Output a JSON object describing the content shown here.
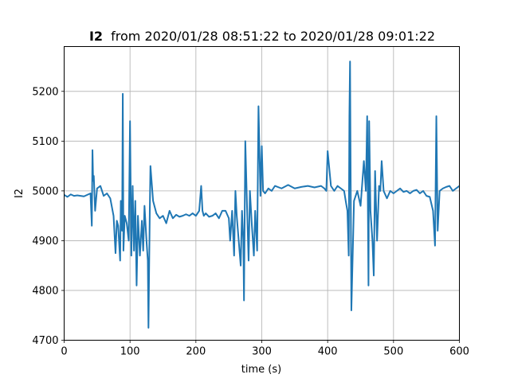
{
  "chart_data": {
    "type": "line",
    "title": {
      "bold": "I2",
      "rest": "from 2020/01/28 08:51:22 to 2020/01/28 09:01:22"
    },
    "xlabel": "time (s)",
    "ylabel": "I2",
    "xlim": [
      0,
      600
    ],
    "ylim": [
      4700,
      5290
    ],
    "x_ticks": [
      0,
      100,
      200,
      300,
      400,
      500,
      600
    ],
    "y_ticks": [
      4700,
      4800,
      4900,
      5000,
      5100,
      5200
    ],
    "grid": true,
    "line_color": "#1f77b4",
    "series": [
      {
        "x": [
          0,
          5,
          10,
          15,
          20,
          25,
          30,
          35,
          40,
          42,
          43,
          44,
          45,
          47,
          50,
          55,
          60,
          65,
          70,
          75,
          78,
          80,
          82,
          85,
          86,
          88,
          89,
          90,
          92,
          95,
          98,
          100,
          102,
          104,
          106,
          108,
          110,
          112,
          115,
          118,
          120,
          122,
          125,
          127,
          128,
          130,
          131,
          135,
          140,
          145,
          150,
          155,
          160,
          165,
          170,
          175,
          180,
          185,
          190,
          195,
          200,
          205,
          208,
          210,
          212,
          215,
          220,
          225,
          230,
          235,
          240,
          245,
          250,
          252,
          255,
          258,
          260,
          262,
          265,
          268,
          270,
          272,
          273,
          275,
          278,
          280,
          282,
          285,
          288,
          290,
          293,
          295,
          298,
          300,
          302,
          305,
          310,
          315,
          320,
          330,
          340,
          350,
          360,
          370,
          380,
          390,
          395,
          398,
          400,
          405,
          410,
          415,
          420,
          425,
          428,
          430,
          432,
          433,
          434,
          436,
          440,
          445,
          450,
          455,
          458,
          460,
          462,
          463,
          465,
          468,
          470,
          472,
          475,
          478,
          480,
          482,
          485,
          490,
          495,
          500,
          505,
          510,
          515,
          520,
          525,
          530,
          535,
          540,
          545,
          550,
          555,
          560,
          563,
          565,
          567,
          570,
          575,
          580,
          585,
          590,
          595,
          600
        ],
        "y": [
          4992,
          4988,
          4993,
          4990,
          4991,
          4990,
          4989,
          4992,
          4995,
          4930,
          5082,
          5020,
          5030,
          4960,
          5005,
          5010,
          4990,
          4995,
          4985,
          4950,
          4875,
          4940,
          4930,
          4860,
          4980,
          4920,
          5195,
          4880,
          4950,
          4935,
          4900,
          5140,
          4870,
          5010,
          4880,
          4980,
          4810,
          4950,
          4870,
          4940,
          4880,
          4970,
          4900,
          4860,
          4725,
          4960,
          5050,
          4980,
          4955,
          4945,
          4950,
          4935,
          4960,
          4945,
          4952,
          4948,
          4950,
          4953,
          4950,
          4955,
          4950,
          4960,
          5010,
          4960,
          4950,
          4955,
          4948,
          4950,
          4955,
          4945,
          4960,
          4960,
          4945,
          4900,
          4960,
          4870,
          5000,
          4950,
          4900,
          4850,
          4960,
          4900,
          4780,
          5100,
          4950,
          4860,
          5000,
          4930,
          4870,
          4960,
          4880,
          5170,
          4990,
          5090,
          5000,
          4995,
          5005,
          5000,
          5010,
          5005,
          5012,
          5005,
          5008,
          5010,
          5007,
          5010,
          5005,
          5000,
          5080,
          5010,
          5000,
          5010,
          5005,
          5000,
          4975,
          4960,
          4870,
          5150,
          5260,
          4760,
          4980,
          5000,
          4970,
          5060,
          5000,
          5150,
          4810,
          5140,
          4960,
          4900,
          4830,
          5040,
          4900,
          5010,
          5000,
          5060,
          5000,
          4985,
          5000,
          4995,
          5000,
          5005,
          4998,
          5000,
          4995,
          5000,
          5002,
          4995,
          5000,
          4990,
          4988,
          4960,
          4890,
          5150,
          4920,
          5000,
          5005,
          5008,
          5010,
          5000,
          5005,
          5010
        ]
      }
    ]
  }
}
